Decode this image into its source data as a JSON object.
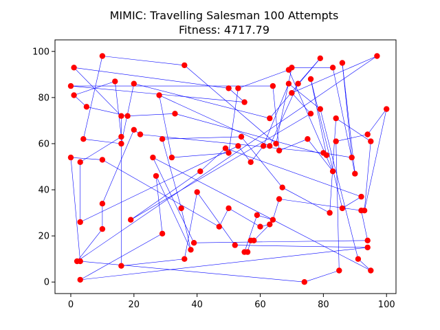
{
  "chart_data": {
    "type": "scatter",
    "title_line1": "MIMIC: Travelling Salesman 100 Attempts",
    "title_line2": "Fitness: 4717.79",
    "xlim": [
      -5,
      103
    ],
    "ylim": [
      -5,
      105
    ],
    "xticks": [
      0,
      20,
      40,
      60,
      80,
      100
    ],
    "yticks": [
      0,
      20,
      40,
      60,
      80,
      100
    ],
    "grid": false,
    "point_color": "#ff0000",
    "route_color": "#0000ff",
    "route": [
      [
        97,
        98
      ],
      [
        70,
        82
      ],
      [
        76,
        73
      ],
      [
        19,
        27
      ],
      [
        41,
        48
      ],
      [
        49,
        58
      ],
      [
        92,
        37
      ],
      [
        86,
        32
      ],
      [
        76,
        88
      ],
      [
        81,
        55
      ],
      [
        33,
        73
      ],
      [
        18,
        72
      ],
      [
        5,
        76
      ],
      [
        1,
        81
      ],
      [
        14,
        87
      ],
      [
        16,
        63
      ],
      [
        3,
        52
      ],
      [
        3,
        26
      ],
      [
        53,
        59
      ],
      [
        57,
        52
      ],
      [
        61,
        59
      ],
      [
        69,
        86
      ],
      [
        79,
        75
      ],
      [
        91,
        10
      ],
      [
        95,
        5
      ],
      [
        26,
        54
      ],
      [
        39,
        17
      ],
      [
        94,
        18
      ],
      [
        92,
        31
      ],
      [
        66,
        36
      ],
      [
        64,
        27
      ],
      [
        59,
        29
      ],
      [
        55,
        13
      ],
      [
        56,
        13
      ],
      [
        57,
        18
      ],
      [
        58,
        18
      ],
      [
        63,
        25
      ],
      [
        60,
        24
      ],
      [
        50,
        32
      ],
      [
        47,
        24
      ],
      [
        10,
        53
      ],
      [
        0,
        54
      ],
      [
        3,
        9
      ],
      [
        74,
        0
      ],
      [
        85,
        5
      ],
      [
        84,
        61
      ],
      [
        94,
        64
      ],
      [
        100,
        75
      ],
      [
        93,
        31
      ],
      [
        95,
        61
      ],
      [
        84,
        71
      ],
      [
        82,
        30
      ],
      [
        67,
        41
      ],
      [
        54,
        63
      ],
      [
        29,
        62
      ],
      [
        35,
        32
      ],
      [
        38,
        14
      ],
      [
        27,
        46
      ],
      [
        29,
        21
      ],
      [
        3,
        1
      ],
      [
        94,
        15
      ],
      [
        52,
        16
      ],
      [
        40,
        39
      ],
      [
        36,
        10
      ],
      [
        16,
        7
      ],
      [
        16,
        72
      ],
      [
        1,
        93
      ],
      [
        50,
        84
      ],
      [
        55,
        78
      ],
      [
        0,
        85
      ],
      [
        64,
        85
      ],
      [
        66,
        57
      ],
      [
        75,
        62
      ],
      [
        83,
        48
      ],
      [
        69,
        92
      ],
      [
        53,
        84
      ],
      [
        50,
        56
      ],
      [
        32,
        54
      ],
      [
        28,
        81
      ],
      [
        63,
        59
      ],
      [
        72,
        86
      ],
      [
        79,
        97
      ],
      [
        63,
        71
      ],
      [
        20,
        86
      ],
      [
        16,
        60
      ],
      [
        4,
        62
      ],
      [
        10,
        98
      ],
      [
        36,
        94
      ],
      [
        65,
        60
      ],
      [
        70,
        93
      ],
      [
        83,
        93
      ],
      [
        90,
        47
      ],
      [
        86,
        95
      ],
      [
        89,
        54
      ],
      [
        80,
        56
      ],
      [
        22,
        64
      ],
      [
        20,
        66
      ],
      [
        10,
        34
      ],
      [
        10,
        23
      ],
      [
        2,
        9
      ]
    ]
  }
}
